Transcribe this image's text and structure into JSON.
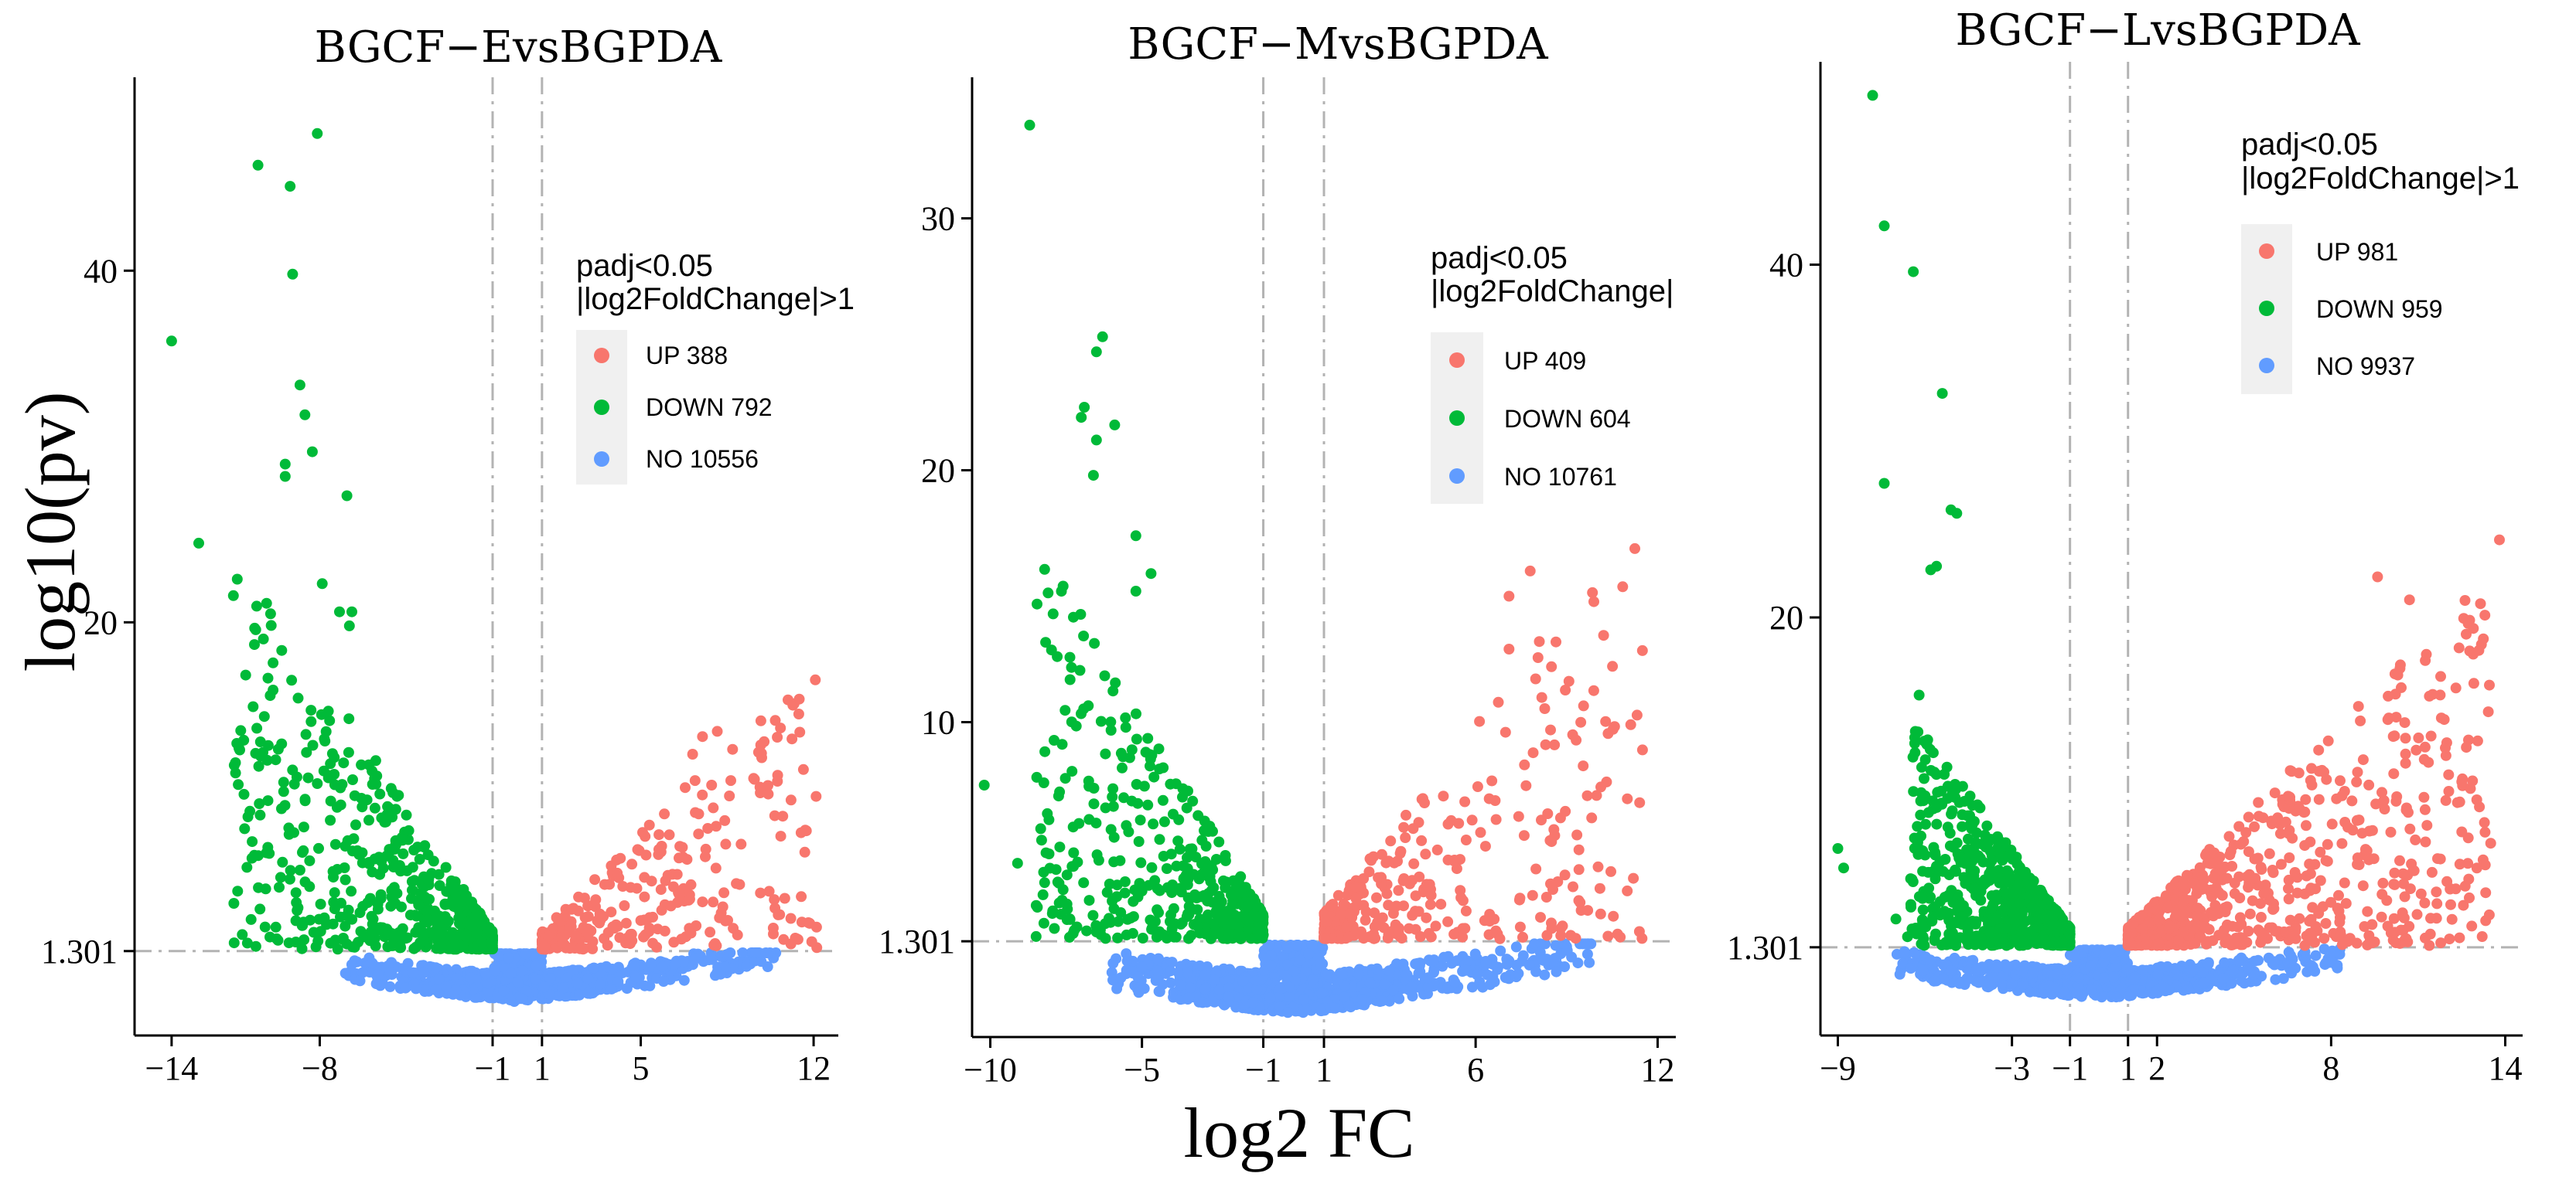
{
  "figure": {
    "shared_ylabel": "log10(pv)",
    "shared_xlabel": "log2 FC"
  },
  "colors": {
    "up": "#F8766D",
    "down": "#00BA38",
    "no": "#619CFF",
    "threshold": "#b3b3b3",
    "legend_bg": "#f0f0f0"
  },
  "chart_data": [
    {
      "type": "scatter",
      "title": "BGCF−EvsBGPDA",
      "xlabel": "log2 FC",
      "ylabel": "log10(pv)",
      "xlim": [
        -15.5,
        13
      ],
      "ylim": [
        -3.5,
        51
      ],
      "xticks": [
        {
          "value": -14,
          "label": "−14"
        },
        {
          "value": -8,
          "label": "−8"
        },
        {
          "value": -1,
          "label": "−1"
        },
        {
          "value": 1,
          "label": "1"
        },
        {
          "value": 5,
          "label": "5"
        },
        {
          "value": 12,
          "label": "12"
        }
      ],
      "yticks": [
        {
          "value": 1.301,
          "label": "1.301"
        },
        {
          "value": 20,
          "label": "20"
        },
        {
          "value": 40,
          "label": "40"
        }
      ],
      "thresholds": {
        "fc": [
          -1,
          1
        ],
        "p": 1.301
      },
      "legend": {
        "title": [
          "padj<0.05",
          "|log2FoldChange|>1"
        ],
        "entries": [
          {
            "key": "up",
            "label": "UP 388"
          },
          {
            "key": "down",
            "label": "DOWN 792"
          },
          {
            "key": "no",
            "label": "NO 10556"
          }
        ]
      },
      "scatter_params": {
        "x_min": -13,
        "x_max": 12.2,
        "no_xmin": -7,
        "no_xmax": 10.5,
        "down_x_min": -11.5,
        "up_x_max": 12.2,
        "up_slope": 1.4,
        "down_slope": 2.1,
        "seed": 11
      },
      "outliers": {
        "down": [
          [
            -14,
            36
          ],
          [
            -12.9,
            24.5
          ],
          [
            -10.5,
            46
          ],
          [
            -9.2,
            44.8
          ],
          [
            -9.1,
            39.8
          ],
          [
            -8.1,
            47.8
          ],
          [
            -8.8,
            33.5
          ],
          [
            -8.6,
            31.8
          ],
          [
            -9.4,
            29
          ],
          [
            -9.4,
            28.3
          ],
          [
            -8.3,
            29.7
          ],
          [
            -6.9,
            27.2
          ],
          [
            -7.9,
            22.2
          ],
          [
            -7.2,
            20.6
          ],
          [
            -11,
            17
          ],
          [
            -10.7,
            15.2
          ],
          [
            -10.4,
            13.2
          ],
          [
            -10.3,
            12.6
          ],
          [
            -6.7,
            20.6
          ],
          [
            -6.8,
            19.8
          ]
        ],
        "up": [
          [
            7.5,
            13.5
          ],
          [
            8.1,
            13.8
          ],
          [
            7.1,
            12.5
          ],
          [
            6.8,
            10.6
          ],
          [
            12.1,
            10.1
          ],
          [
            10.2,
            4.7
          ],
          [
            11.5,
            4.4
          ],
          [
            7.5,
            4.1
          ],
          [
            6,
            5.3
          ],
          [
            9.9,
            12.3
          ]
        ]
      }
    },
    {
      "type": "scatter",
      "title": "BGCF−MvsBGPDA",
      "xlabel": "log2 FC",
      "ylabel": "log10(pv)",
      "xlim": [
        -10.6,
        12.6
      ],
      "ylim": [
        -2.5,
        35.6
      ],
      "xticks": [
        {
          "value": -10,
          "label": "−10"
        },
        {
          "value": -5,
          "label": "−5"
        },
        {
          "value": -1,
          "label": "−1"
        },
        {
          "value": 1,
          "label": "1"
        },
        {
          "value": 6,
          "label": "6"
        },
        {
          "value": 12,
          "label": "12"
        }
      ],
      "yticks": [
        {
          "value": 1.301,
          "label": "1.301"
        },
        {
          "value": 10,
          "label": "10"
        },
        {
          "value": 20,
          "label": "20"
        },
        {
          "value": 30,
          "label": "30"
        }
      ],
      "thresholds": {
        "fc": [
          -1,
          1
        ],
        "p": 1.301
      },
      "legend": {
        "title": [
          "padj<0.05",
          "|log2FoldChange|"
        ],
        "entries": [
          {
            "key": "up",
            "label": "UP 409"
          },
          {
            "key": "down",
            "label": "DOWN 604"
          },
          {
            "key": "no",
            "label": "NO 10761"
          }
        ]
      },
      "scatter_params": {
        "x_min": -9,
        "x_max": 10.5,
        "no_xmin": -6,
        "no_xmax": 10,
        "down_x_min": -8.5,
        "up_x_max": 11.5,
        "up_slope": 1.5,
        "down_slope": 2.0,
        "seed": 23
      },
      "outliers": {
        "down": [
          [
            -10.2,
            7.5
          ],
          [
            -8.7,
            33.7
          ],
          [
            -6.3,
            25.3
          ],
          [
            -6.5,
            24.7
          ],
          [
            -7,
            22.1
          ],
          [
            -6.9,
            22.5
          ],
          [
            -6.5,
            21.2
          ],
          [
            -6.6,
            19.8
          ],
          [
            -5.9,
            21.8
          ],
          [
            -5.2,
            17.4
          ],
          [
            -7.6,
            15.4
          ],
          [
            -4.7,
            15.9
          ],
          [
            -9.1,
            4.4
          ],
          [
            -5.6,
            7
          ],
          [
            -6.2,
            6.6
          ],
          [
            -5.2,
            15.2
          ]
        ],
        "up": [
          [
            7.8,
            16
          ],
          [
            7.1,
            15
          ],
          [
            8.1,
            13.2
          ],
          [
            7.1,
            12.9
          ],
          [
            8.5,
            12.2
          ],
          [
            8.6,
            9.1
          ],
          [
            11.5,
            8.9
          ],
          [
            9.2,
            9.5
          ],
          [
            8.8,
            6.2
          ],
          [
            7.6,
            5.5
          ],
          [
            10.1,
            3.4
          ],
          [
            11.2,
            3.8
          ],
          [
            11,
            3.3
          ]
        ]
      }
    },
    {
      "type": "scatter",
      "title": "BGCF−LvsBGPDA",
      "xlabel": "log2 FC",
      "ylabel": "log10(pv)",
      "xlim": [
        -9.6,
        14.6
      ],
      "ylim": [
        -3.7,
        51.5
      ],
      "xticks": [
        {
          "value": -9,
          "label": "−9"
        },
        {
          "value": -3,
          "label": "−3"
        },
        {
          "value": -1,
          "label": "−1"
        },
        {
          "value": 1,
          "label": "1"
        },
        {
          "value": 2,
          "label": "2"
        },
        {
          "value": 8,
          "label": "8"
        },
        {
          "value": 14,
          "label": "14"
        }
      ],
      "yticks": [
        {
          "value": 1.301,
          "label": "1.301"
        },
        {
          "value": 20,
          "label": "20"
        },
        {
          "value": 40,
          "label": "40"
        }
      ],
      "thresholds": {
        "fc": [
          -1,
          1
        ],
        "p": 1.301
      },
      "legend": {
        "title": [
          "padj<0.05",
          "|log2FoldChange|>1"
        ],
        "entries": [
          {
            "key": "up",
            "label": "UP 981"
          },
          {
            "key": "down",
            "label": "DOWN 959"
          },
          {
            "key": "no",
            "label": "NO 9937"
          }
        ]
      },
      "scatter_params": {
        "x_min": -7,
        "x_max": 8.5,
        "no_xmin": -7,
        "no_xmax": 8.5,
        "down_x_min": -6.5,
        "up_x_max": 13.5,
        "up_slope": 1.6,
        "down_slope": 2.2,
        "seed": 37
      },
      "outliers": {
        "down": [
          [
            -7.8,
            49.6
          ],
          [
            -7.4,
            42.2
          ],
          [
            -6.4,
            39.6
          ],
          [
            -5.4,
            32.7
          ],
          [
            -7.4,
            27.6
          ],
          [
            -5.1,
            26.1
          ],
          [
            -4.9,
            25.9
          ],
          [
            -5.8,
            22.7
          ],
          [
            -5.6,
            22.9
          ],
          [
            -6.2,
            15.6
          ],
          [
            -9,
            6.9
          ],
          [
            -8.8,
            5.8
          ],
          [
            -7,
            2.9
          ],
          [
            -6.6,
            1.9
          ]
        ],
        "up": [
          [
            13.8,
            24.4
          ],
          [
            9.6,
            22.3
          ],
          [
            10.7,
            21
          ],
          [
            11.8,
            14.3
          ],
          [
            12.3,
            16
          ],
          [
            13.5,
            7.2
          ],
          [
            10.2,
            16.8
          ],
          [
            10.6,
            9.2
          ],
          [
            11.2,
            9.8
          ],
          [
            10.5,
            4.9
          ],
          [
            12.1,
            4.6
          ],
          [
            9.3,
            10.5
          ],
          [
            8.9,
            6
          ]
        ]
      }
    }
  ]
}
